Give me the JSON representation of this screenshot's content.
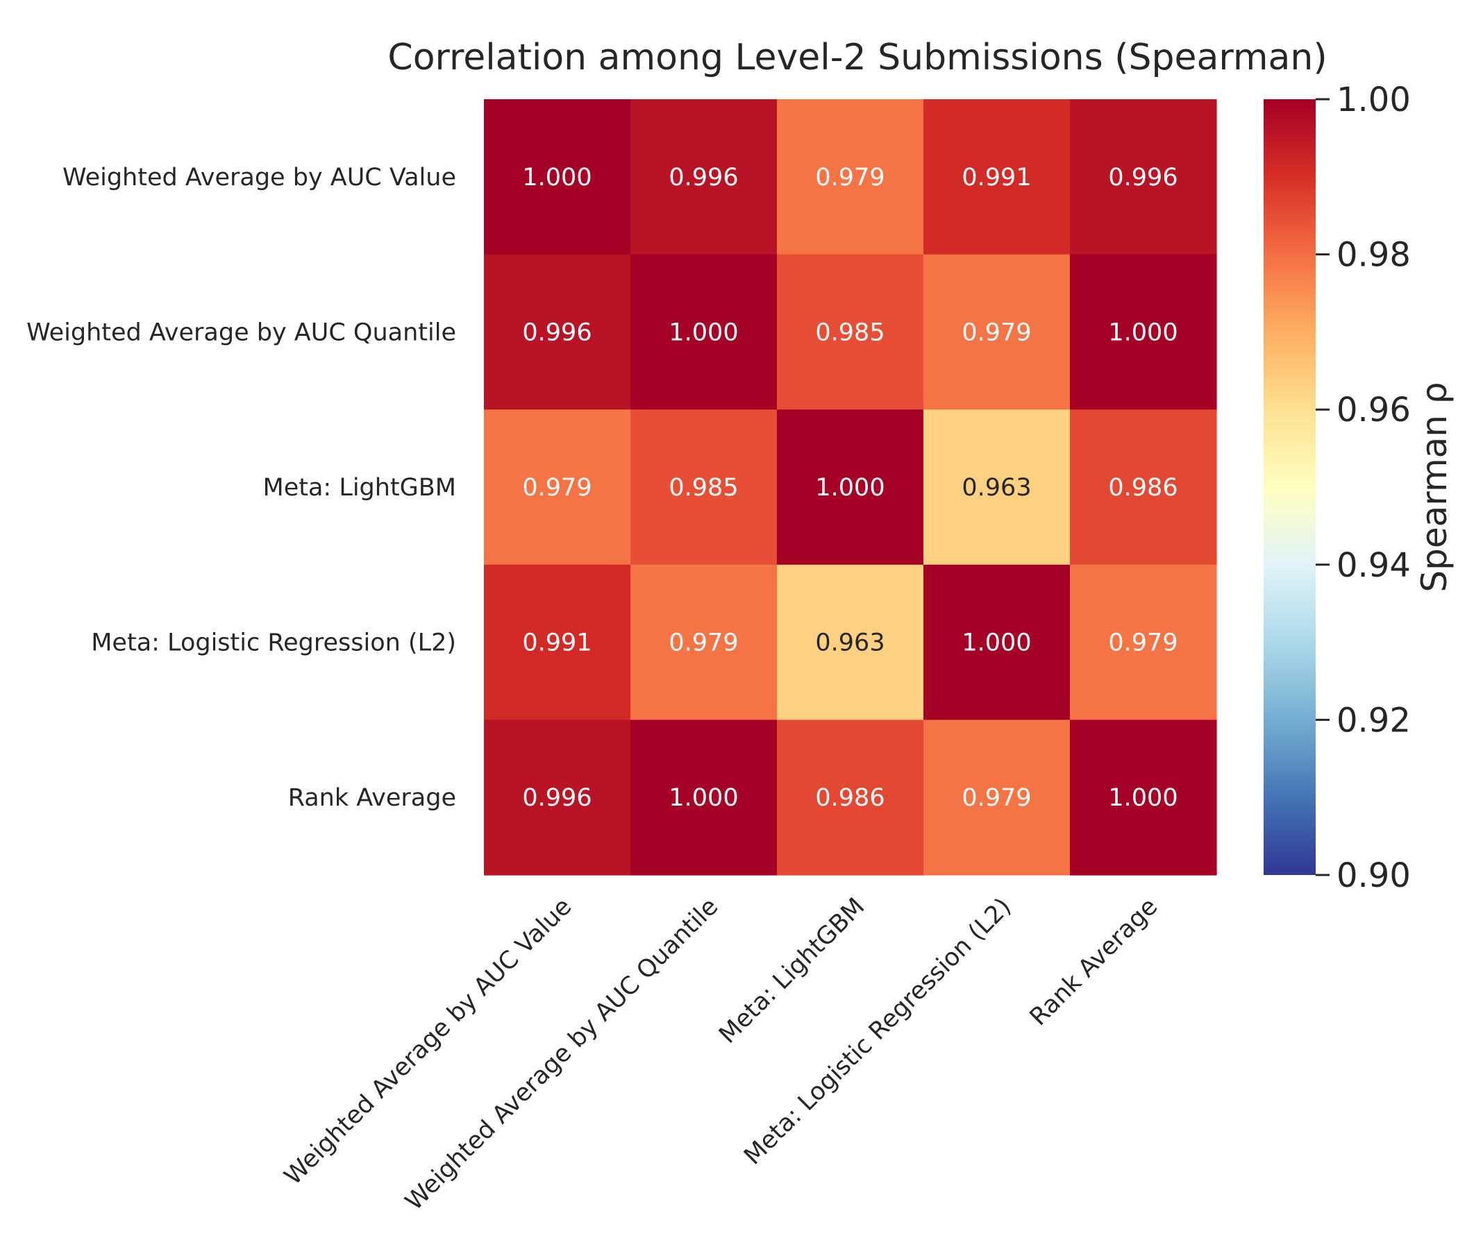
{
  "chart_data": {
    "type": "heatmap",
    "title": "Correlation among Level-2 Submissions (Spearman)",
    "rows": [
      "Weighted Average by AUC Value",
      "Weighted Average by AUC Quantile",
      "Meta: LightGBM",
      "Meta: Logistic Regression (L2)",
      "Rank Average"
    ],
    "columns": [
      "Weighted Average by AUC Value",
      "Weighted Average by AUC Quantile",
      "Meta: LightGBM",
      "Meta: Logistic Regression (L2)",
      "Rank Average"
    ],
    "values": [
      [
        1.0,
        0.996,
        0.979,
        0.991,
        0.996
      ],
      [
        0.996,
        1.0,
        0.985,
        0.979,
        1.0
      ],
      [
        0.979,
        0.985,
        1.0,
        0.963,
        0.986
      ],
      [
        0.991,
        0.979,
        0.963,
        1.0,
        0.979
      ],
      [
        0.996,
        1.0,
        0.986,
        0.979,
        1.0
      ]
    ],
    "cell_labels": [
      [
        "1.000",
        "0.996",
        "0.979",
        "0.991",
        "0.996"
      ],
      [
        "0.996",
        "1.000",
        "0.985",
        "0.979",
        "1.000"
      ],
      [
        "0.979",
        "0.985",
        "1.000",
        "0.963",
        "0.986"
      ],
      [
        "0.991",
        "0.979",
        "0.963",
        "1.000",
        "0.979"
      ],
      [
        "0.996",
        "1.000",
        "0.986",
        "0.979",
        "1.000"
      ]
    ],
    "colormap": "RdYlBu_r",
    "colorbar": {
      "label": "Spearman ρ",
      "range": [
        0.9,
        1.0
      ],
      "ticks": [
        "0.90",
        "0.92",
        "0.94",
        "0.96",
        "0.98",
        "1.00"
      ],
      "tick_values": [
        0.9,
        0.92,
        0.94,
        0.96,
        0.98,
        1.0
      ]
    },
    "grid": false
  }
}
